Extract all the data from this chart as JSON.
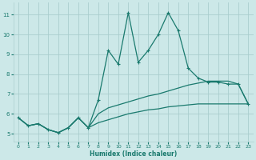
{
  "xlabel": "Humidex (Indice chaleur)",
  "background_color": "#cce8e8",
  "grid_color": "#aacece",
  "line_color": "#1a7a6e",
  "xlim": [
    -0.5,
    23.5
  ],
  "ylim": [
    4.6,
    11.6
  ],
  "xticks": [
    0,
    1,
    2,
    3,
    4,
    5,
    6,
    7,
    8,
    9,
    10,
    11,
    12,
    13,
    14,
    15,
    16,
    17,
    18,
    19,
    20,
    21,
    22,
    23
  ],
  "yticks": [
    5,
    6,
    7,
    8,
    9,
    10,
    11
  ],
  "line1_x": [
    0,
    1,
    2,
    3,
    4,
    5,
    6,
    7,
    8,
    9,
    10,
    11,
    12,
    13,
    14,
    15,
    16,
    17,
    18,
    19,
    20,
    21,
    22,
    23
  ],
  "line1_y": [
    5.8,
    5.4,
    5.5,
    5.2,
    5.05,
    5.3,
    5.8,
    5.3,
    6.7,
    9.2,
    8.5,
    11.1,
    8.6,
    9.2,
    10.0,
    11.1,
    10.2,
    8.3,
    7.8,
    7.6,
    7.6,
    7.5,
    7.5,
    6.5
  ],
  "line2_x": [
    0,
    1,
    2,
    3,
    4,
    5,
    6,
    7,
    8,
    9,
    10,
    11,
    12,
    13,
    14,
    15,
    16,
    17,
    18,
    19,
    20,
    21,
    22,
    23
  ],
  "line2_y": [
    5.8,
    5.4,
    5.5,
    5.2,
    5.05,
    5.3,
    5.8,
    5.3,
    6.0,
    6.3,
    6.45,
    6.6,
    6.75,
    6.9,
    7.0,
    7.15,
    7.3,
    7.45,
    7.55,
    7.65,
    7.65,
    7.65,
    7.5,
    6.5
  ],
  "line3_x": [
    0,
    1,
    2,
    3,
    4,
    5,
    6,
    7,
    8,
    9,
    10,
    11,
    12,
    13,
    14,
    15,
    16,
    17,
    18,
    19,
    20,
    21,
    22,
    23
  ],
  "line3_y": [
    5.8,
    5.4,
    5.5,
    5.2,
    5.05,
    5.3,
    5.8,
    5.3,
    5.55,
    5.7,
    5.85,
    6.0,
    6.1,
    6.2,
    6.25,
    6.35,
    6.4,
    6.45,
    6.5,
    6.5,
    6.5,
    6.5,
    6.5,
    6.5
  ]
}
